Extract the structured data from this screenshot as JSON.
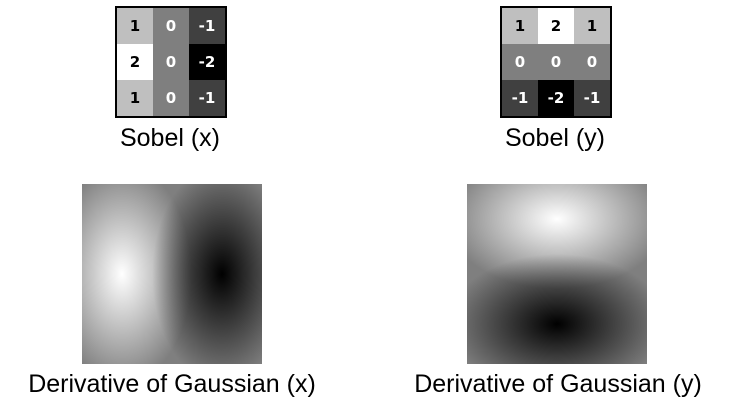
{
  "panels": {
    "sobel_x": {
      "caption": "Sobel (x)",
      "cells": [
        "1",
        "0",
        "-1",
        "2",
        "0",
        "-2",
        "1",
        "0",
        "-1"
      ]
    },
    "sobel_y": {
      "caption": "Sobel (y)",
      "cells": [
        "1",
        "2",
        "1",
        "0",
        "0",
        "0",
        "-1",
        "-2",
        "-1"
      ]
    },
    "dog_x": {
      "caption": "Derivative of Gaussian (x)"
    },
    "dog_y": {
      "caption": "Derivative of Gaussian (y)"
    }
  },
  "colors": {
    "background": "#ffffff",
    "value_2": "#ffffff",
    "value_1": "#bfbfbf",
    "value_0": "#7f7f7f",
    "value_-1": "#404040",
    "value_-2": "#000000",
    "text_on_light": "#000000",
    "text_on_dark": "#ffffff"
  }
}
